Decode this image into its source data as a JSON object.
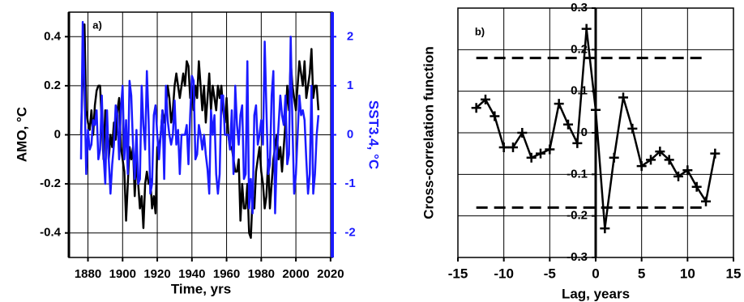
{
  "chart_data": [
    {
      "type": "line",
      "panel_label": "a)",
      "x_label": "Time, yrs",
      "y_label": "AMO, °C",
      "y2_label": "SST3.4, °C",
      "x": [
        1876,
        1877,
        1878,
        1879,
        1880,
        1881,
        1882,
        1883,
        1884,
        1885,
        1886,
        1887,
        1888,
        1889,
        1890,
        1891,
        1892,
        1893,
        1894,
        1895,
        1896,
        1897,
        1898,
        1899,
        1900,
        1901,
        1902,
        1903,
        1904,
        1905,
        1906,
        1907,
        1908,
        1909,
        1910,
        1911,
        1912,
        1913,
        1914,
        1915,
        1916,
        1917,
        1918,
        1919,
        1920,
        1921,
        1922,
        1923,
        1924,
        1925,
        1926,
        1927,
        1928,
        1929,
        1930,
        1931,
        1932,
        1933,
        1934,
        1935,
        1936,
        1937,
        1938,
        1939,
        1940,
        1941,
        1942,
        1943,
        1944,
        1945,
        1946,
        1947,
        1948,
        1949,
        1950,
        1951,
        1952,
        1953,
        1954,
        1955,
        1956,
        1957,
        1958,
        1959,
        1960,
        1961,
        1962,
        1963,
        1964,
        1965,
        1966,
        1967,
        1968,
        1969,
        1970,
        1971,
        1972,
        1973,
        1974,
        1975,
        1976,
        1977,
        1978,
        1979,
        1980,
        1981,
        1982,
        1983,
        1984,
        1985,
        1986,
        1987,
        1988,
        1989,
        1990,
        1991,
        1992,
        1993,
        1994,
        1995,
        1996,
        1997,
        1998,
        1999,
        2000,
        2001,
        2002,
        2003,
        2004,
        2005,
        2006,
        2007,
        2008,
        2009,
        2010,
        2011,
        2012,
        2013
      ],
      "series": [
        {
          "color": "#000000",
          "values": [
            0.0,
            0.25,
            0.45,
            0.1,
            0.05,
            0.02,
            0.1,
            0.0,
            0.12,
            0.18,
            0.2,
            0.2,
            0.05,
            -0.1,
            0.1,
            0.05,
            -0.1,
            0.0,
            -0.05,
            0.05,
            -0.02,
            0.1,
            0.15,
            -0.05,
            -0.1,
            -0.15,
            -0.35,
            -0.2,
            -0.05,
            -0.1,
            -0.05,
            -0.25,
            -0.1,
            -0.2,
            -0.3,
            -0.25,
            -0.38,
            -0.2,
            -0.15,
            -0.2,
            -0.18,
            -0.3,
            -0.25,
            -0.32,
            -0.05,
            -0.05,
            0.0,
            0.1,
            0.05,
            0.1,
            0.2,
            0.15,
            0.05,
            0.1,
            0.2,
            0.25,
            0.2,
            0.15,
            0.2,
            0.25,
            0.2,
            0.3,
            0.28,
            0.15,
            0.2,
            0.1,
            0.2,
            0.15,
            0.3,
            0.2,
            0.1,
            0.2,
            0.05,
            0.15,
            0.25,
            0.1,
            0.2,
            0.15,
            0.1,
            0.2,
            0.15,
            0.2,
            0.1,
            0.05,
            0.15,
            0.0,
            -0.05,
            -0.05,
            -0.1,
            -0.15,
            -0.15,
            -0.1,
            -0.35,
            -0.2,
            -0.3,
            -0.3,
            -0.2,
            -0.4,
            -0.42,
            -0.25,
            -0.3,
            -0.15,
            -0.1,
            -0.05,
            -0.15,
            -0.2,
            -0.3,
            -0.25,
            -0.1,
            -0.3,
            -0.2,
            -0.1,
            -0.05,
            0.0,
            -0.1,
            -0.05,
            -0.15,
            -0.05,
            0.05,
            0.2,
            0.1,
            0.3,
            0.2,
            0.15,
            0.1,
            0.2,
            0.3,
            0.25,
            0.2,
            0.3,
            0.15,
            0.2,
            0.25,
            0.35,
            0.15,
            0.2,
            0.2,
            0.1
          ]
        },
        {
          "color": "#1a1aff",
          "axis": "y2",
          "values": [
            -0.5,
            2.3,
            1.0,
            -0.8,
            0.1,
            -0.3,
            -0.2,
            0.3,
            0.2,
            0.5,
            -0.5,
            -0.3,
            0.8,
            -0.4,
            -1.0,
            0.5,
            -0.5,
            -1.2,
            -0.6,
            -0.2,
            0.6,
            0.4,
            -0.5,
            0.5,
            1.0,
            -0.5,
            0.3,
            -0.8,
            1.1,
            0.8,
            -0.2,
            -0.9,
            0.1,
            -1.0,
            -0.9,
            1.0,
            0.2,
            -0.3,
            1.3,
            0.3,
            -1.2,
            -1.0,
            0.4,
            0.6,
            0.0,
            -0.5,
            0.0,
            0.5,
            -0.9,
            1.0,
            0.3,
            0.0,
            -0.2,
            0.0,
            0.7,
            -0.2,
            0.1,
            -0.8,
            0.0,
            0.0,
            0.0,
            0.2,
            -0.6,
            0.4,
            1.2,
            1.1,
            -0.5,
            -0.4,
            0.2,
            0.0,
            -0.3,
            0.0,
            -0.4,
            -0.7,
            -1.2,
            0.5,
            0.0,
            0.4,
            -0.8,
            -1.2,
            -0.8,
            0.8,
            0.8,
            0.0,
            0.0,
            0.0,
            -0.3,
            0.5,
            -0.8,
            1.0,
            0.2,
            -0.2,
            0.4,
            0.6,
            -0.9,
            -0.8,
            1.5,
            -1.5,
            -0.9,
            -1.6,
            0.4,
            0.6,
            -0.2,
            0.0,
            0.3,
            -0.2,
            1.9,
            0.5,
            -0.8,
            -0.6,
            0.8,
            1.3,
            -1.6,
            -0.4,
            0.2,
            0.8,
            0.4,
            0.2,
            0.8,
            -0.6,
            -0.4,
            2.0,
            0.2,
            -1.2,
            -0.8,
            0.0,
            0.8,
            0.4,
            0.5,
            0.3,
            -0.5,
            -1.2,
            -0.8,
            1.0,
            -1.2,
            -0.8,
            0.0,
            0.4
          ]
        }
      ],
      "xlim": [
        1869,
        2021
      ],
      "xticks": [
        1880,
        1900,
        1920,
        1940,
        1960,
        1980,
        2000,
        2020
      ],
      "ylim": [
        -0.5,
        0.5
      ],
      "yticks": [
        0.4,
        0.2,
        0,
        -0.2,
        -0.4
      ],
      "y2lim": [
        -2.5,
        2.5
      ],
      "y2ticks": [
        2,
        1,
        0,
        -1,
        -2
      ],
      "grid": true
    },
    {
      "type": "line",
      "panel_label": "b)",
      "x_label": "Lag, years",
      "y_label": "Cross-correlation function",
      "x": [
        -13,
        -12,
        -11,
        -10,
        -9,
        -8,
        -7,
        -6,
        -5,
        -4,
        -3,
        -2,
        -1,
        0,
        1,
        2,
        3,
        4,
        5,
        6,
        7,
        8,
        9,
        10,
        11,
        12,
        13
      ],
      "series": [
        {
          "color": "#000000",
          "marker": "+",
          "values": [
            0.06,
            0.08,
            0.04,
            -0.035,
            -0.035,
            0.0,
            -0.06,
            -0.05,
            -0.04,
            0.07,
            0.02,
            -0.025,
            0.25,
            0.055,
            -0.23,
            -0.06,
            0.085,
            0.01,
            -0.08,
            -0.065,
            -0.045,
            -0.065,
            -0.105,
            -0.09,
            -0.13,
            -0.165,
            -0.05
          ]
        }
      ],
      "significance_levels": [
        0.18,
        -0.18
      ],
      "significance_xrange": [
        -13,
        12
      ],
      "xlim": [
        -15,
        15
      ],
      "xticks": [
        -15,
        -10,
        -5,
        0,
        5,
        10,
        15
      ],
      "ylim": [
        -0.3,
        0.3
      ],
      "yticks": [
        0.3,
        0.2,
        0.1,
        0,
        -0.1,
        -0.2,
        -0.3
      ],
      "grid": true
    }
  ]
}
